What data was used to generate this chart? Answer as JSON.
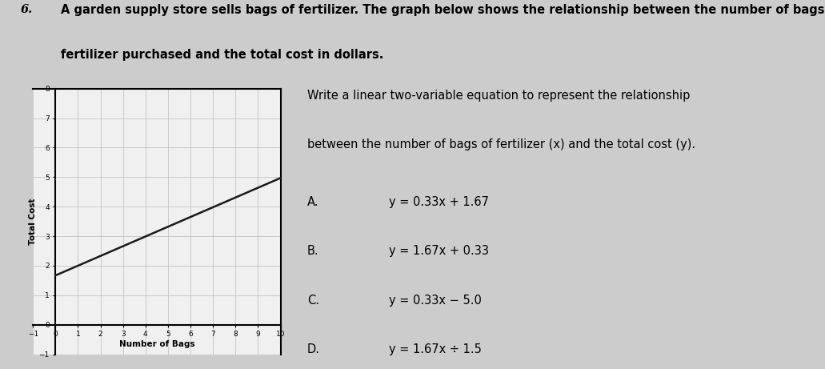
{
  "title_number": "6.",
  "title_line1": "A garden supply store sells bags of fertilizer. The graph below shows the relationship between the number of bags of",
  "title_line2": "fertilizer purchased and the total cost in dollars.",
  "question_line1": "Write a linear two-variable equation to represent the relationship",
  "question_line2": "between the number of bags of fertilizer (x) and the total cost (y).",
  "choices": [
    {
      "label": "A.",
      "eq": "y = 0.33x + 1.67"
    },
    {
      "label": "B.",
      "eq": "y = 1.67x + 0.33"
    },
    {
      "label": "C.",
      "eq": "y = 0.33x − 5.0"
    },
    {
      "label": "D.",
      "eq": "y = 1.67x ÷ 1.5"
    }
  ],
  "graph": {
    "xlabel": "Number of Bags",
    "ylabel": "Total Cost",
    "xlim": [
      -1,
      10
    ],
    "ylim": [
      -1,
      8
    ],
    "xticks": [
      -1,
      0,
      1,
      2,
      3,
      4,
      5,
      6,
      7,
      8,
      9,
      10
    ],
    "yticks": [
      -1,
      0,
      1,
      2,
      3,
      4,
      5,
      6,
      7,
      8
    ],
    "slope": 0.33,
    "intercept": 1.67,
    "line_x_start": 0,
    "line_x_end": 10,
    "line_color": "#1a1a1a",
    "line_width": 1.8,
    "grid_color": "#bbbbbb",
    "grid_linewidth": 0.5,
    "bg_color": "#f0f0f0"
  },
  "page_bg": "#cccccc",
  "text_color": "#000000",
  "font_size_title": 10.5,
  "font_size_question": 10.5,
  "font_size_choices": 10.5
}
